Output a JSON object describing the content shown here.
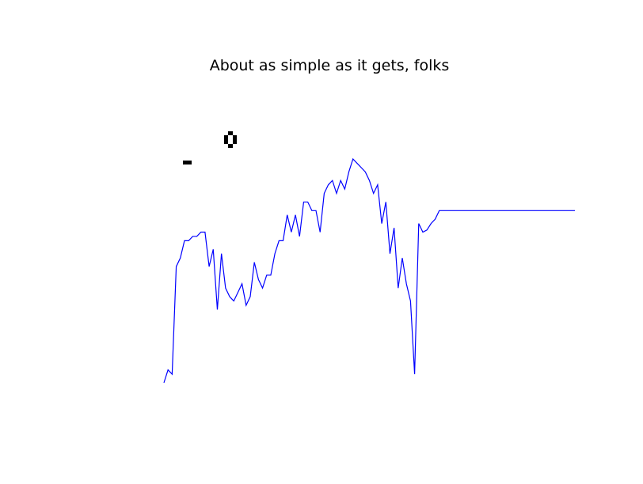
{
  "chart_data": {
    "type": "line",
    "title": "About as simple as it gets, folks",
    "xlabel": "",
    "ylabel": "",
    "axes_visible": false,
    "grid": false,
    "series": [
      {
        "color": "#0000ff",
        "values": [
          -0.25,
          -0.22,
          -0.23,
          0.02,
          0.04,
          0.08,
          0.08,
          0.09,
          0.09,
          0.1,
          0.1,
          0.02,
          0.06,
          -0.08,
          0.05,
          -0.03,
          -0.05,
          -0.06,
          -0.04,
          -0.02,
          -0.07,
          -0.05,
          0.03,
          -0.01,
          -0.03,
          0.0,
          0.0,
          0.05,
          0.08,
          0.08,
          0.14,
          0.1,
          0.14,
          0.09,
          0.17,
          0.17,
          0.15,
          0.15,
          0.1,
          0.19,
          0.21,
          0.22,
          0.19,
          0.22,
          0.2,
          0.24,
          0.27,
          0.26,
          0.25,
          0.24,
          0.22,
          0.19,
          0.21,
          0.12,
          0.17,
          0.05,
          0.11,
          -0.03,
          0.04,
          -0.02,
          -0.06,
          -0.23,
          0.12,
          0.1,
          0.105,
          0.12,
          0.13,
          0.15,
          0.15,
          0.15,
          0.15,
          0.15,
          0.15,
          0.15,
          0.15,
          0.15,
          0.15,
          0.15,
          0.15,
          0.15,
          0.15,
          0.15,
          0.15,
          0.15,
          0.15,
          0.15,
          0.15,
          0.15,
          0.15,
          0.15,
          0.15,
          0.15,
          0.15,
          0.15,
          0.15,
          0.15,
          0.15,
          0.15,
          0.15,
          0.15,
          0.15
        ]
      }
    ],
    "ylim": [
      -0.25,
      0.27
    ],
    "pixel_marks": [
      "0",
      "-"
    ]
  }
}
